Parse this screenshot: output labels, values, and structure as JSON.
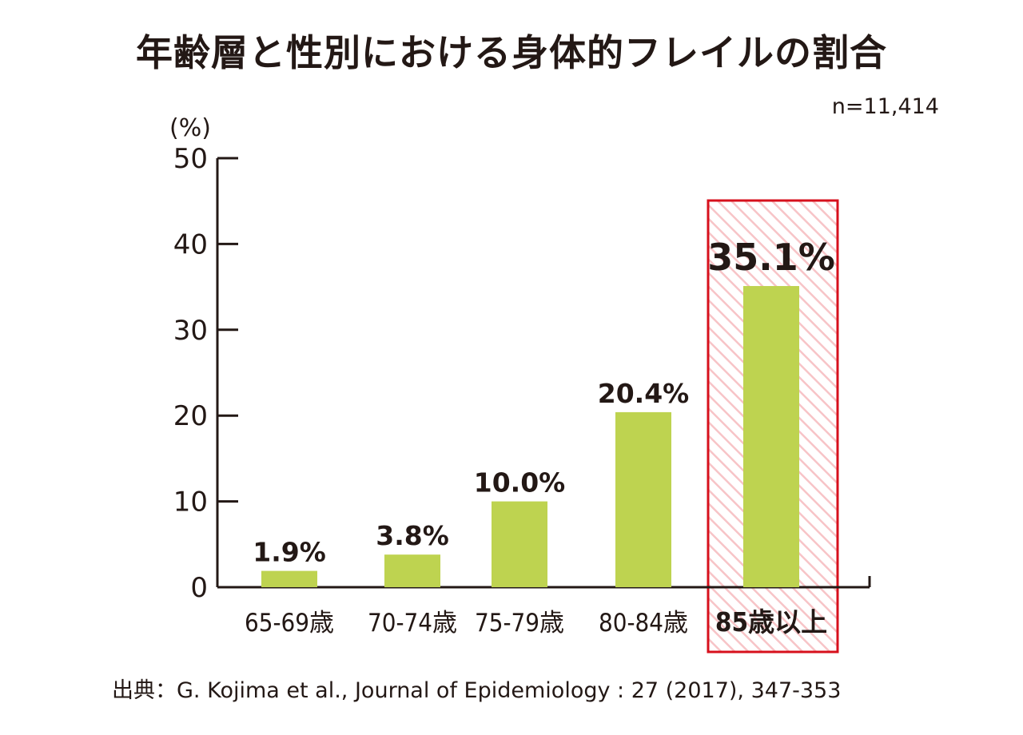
{
  "header": {
    "title": "年齢層と性別における身体的フレイルの割合",
    "sample_size": "n=11,414"
  },
  "source": "出典：G. Kojima et al., Journal of Epidemiology : 27 (2017), 347-353",
  "colors": {
    "bar": "#bed350",
    "highlight_border": "#d7101c",
    "highlight_hatch": "#f7c4c7",
    "axis": "#231815"
  },
  "chart_data": {
    "type": "bar",
    "unit_label": "(%)",
    "categories": [
      "65-69歳",
      "70-74歳",
      "75-79歳",
      "80-84歳",
      "85歳以上"
    ],
    "values": [
      1.9,
      3.8,
      10.0,
      20.4,
      35.1
    ],
    "value_labels": [
      "1.9%",
      "3.8%",
      "10.0%",
      "20.4%",
      "35.1%"
    ],
    "ylim": [
      0,
      50
    ],
    "yticks": [
      0,
      10,
      20,
      30,
      40,
      50
    ],
    "highlight_category": "85歳以上",
    "grid": false
  }
}
